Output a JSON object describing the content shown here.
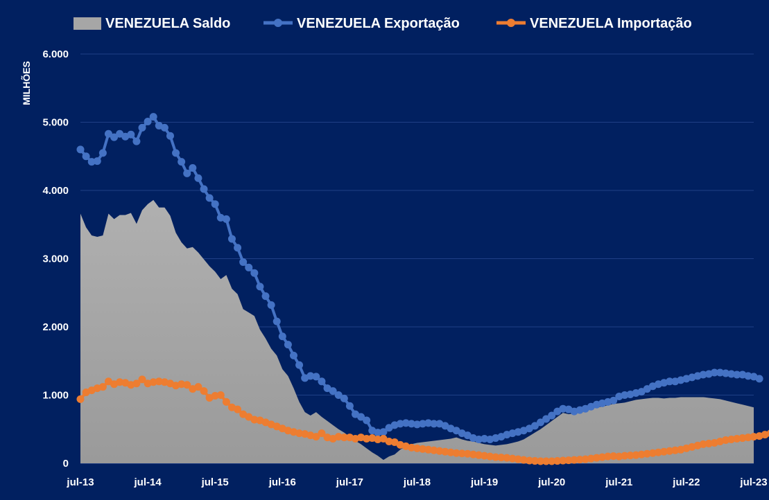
{
  "chart_data": {
    "type": "line",
    "ylabel": "MILHÕES",
    "ylim": [
      0,
      6000
    ],
    "yticks": [
      0,
      1000,
      2000,
      3000,
      4000,
      5000,
      6000
    ],
    "ytick_labels": [
      "0",
      "1.000",
      "2.000",
      "3.000",
      "4.000",
      "5.000",
      "6.000"
    ],
    "xtick_labels": [
      "jul-13",
      "jul-14",
      "jul-15",
      "jul-16",
      "jul-17",
      "jul-18",
      "jul-19",
      "jul-20",
      "jul-21",
      "jul-22",
      "jul-23"
    ],
    "x_start": "jul-13",
    "x_end": "jul-23",
    "grid": true,
    "legend_position": "top",
    "colors": {
      "saldo": "#a6a6a6",
      "exportacao": "#4472c4",
      "importacao": "#ed7d31",
      "background": "#012060",
      "grid": "#1f3f86"
    },
    "series": [
      {
        "name": "VENEZUELA Saldo",
        "style": "area",
        "values": [
          3660,
          3460,
          3340,
          3320,
          3340,
          3660,
          3580,
          3640,
          3640,
          3670,
          3510,
          3710,
          3800,
          3860,
          3750,
          3750,
          3630,
          3380,
          3240,
          3150,
          3170,
          3090,
          2990,
          2890,
          2810,
          2700,
          2760,
          2560,
          2480,
          2260,
          2210,
          2160,
          1960,
          1830,
          1680,
          1580,
          1380,
          1280,
          1100,
          900,
          750,
          700,
          750,
          680,
          620,
          560,
          500,
          450,
          390,
          330,
          280,
          220,
          160,
          110,
          50,
          100,
          130,
          200,
          250,
          280,
          300,
          310,
          320,
          330,
          340,
          350,
          360,
          380,
          350,
          330,
          320,
          300,
          280,
          270,
          260,
          270,
          280,
          300,
          320,
          350,
          400,
          450,
          500,
          560,
          620,
          680,
          740,
          720,
          730,
          750,
          780,
          800,
          820,
          830,
          850,
          870,
          880,
          890,
          910,
          930,
          940,
          950,
          960,
          960,
          950,
          960,
          960,
          970,
          970,
          970,
          970,
          970,
          960,
          950,
          940,
          920,
          900,
          880,
          860,
          840,
          820
        ]
      },
      {
        "name": "VENEZUELA Exportação",
        "style": "line",
        "values": [
          4600,
          4500,
          4420,
          4430,
          4550,
          4830,
          4780,
          4830,
          4790,
          4820,
          4720,
          4920,
          5010,
          5080,
          4950,
          4920,
          4800,
          4550,
          4420,
          4250,
          4330,
          4180,
          4020,
          3890,
          3800,
          3600,
          3580,
          3290,
          3160,
          2950,
          2870,
          2790,
          2590,
          2450,
          2320,
          2080,
          1860,
          1740,
          1580,
          1440,
          1250,
          1280,
          1270,
          1200,
          1100,
          1060,
          1000,
          950,
          840,
          720,
          680,
          630,
          480,
          450,
          460,
          520,
          560,
          580,
          590,
          580,
          570,
          580,
          590,
          580,
          580,
          550,
          510,
          480,
          440,
          410,
          370,
          350,
          360,
          350,
          370,
          390,
          420,
          440,
          460,
          480,
          510,
          550,
          600,
          650,
          700,
          760,
          800,
          790,
          760,
          780,
          800,
          830,
          860,
          880,
          900,
          920,
          980,
          1000,
          1010,
          1030,
          1050,
          1090,
          1130,
          1160,
          1180,
          1200,
          1200,
          1220,
          1240,
          1260,
          1280,
          1300,
          1310,
          1330,
          1330,
          1320,
          1310,
          1300,
          1300,
          1280,
          1270,
          1240
        ]
      },
      {
        "name": "VENEZUELA Importação",
        "style": "line",
        "values": [
          940,
          1040,
          1070,
          1100,
          1120,
          1200,
          1160,
          1190,
          1180,
          1150,
          1170,
          1230,
          1170,
          1190,
          1200,
          1190,
          1170,
          1140,
          1160,
          1150,
          1090,
          1120,
          1060,
          960,
          990,
          1000,
          900,
          820,
          790,
          720,
          680,
          640,
          630,
          600,
          570,
          540,
          510,
          480,
          460,
          440,
          430,
          410,
          390,
          440,
          380,
          360,
          390,
          380,
          380,
          360,
          380,
          360,
          370,
          350,
          360,
          320,
          310,
          270,
          250,
          230,
          220,
          210,
          200,
          190,
          180,
          170,
          160,
          150,
          145,
          140,
          130,
          120,
          110,
          100,
          90,
          85,
          80,
          70,
          60,
          50,
          40,
          35,
          30,
          30,
          30,
          35,
          40,
          45,
          50,
          55,
          60,
          70,
          80,
          90,
          100,
          105,
          100,
          110,
          115,
          120,
          130,
          140,
          150,
          160,
          170,
          180,
          190,
          200,
          220,
          240,
          260,
          280,
          290,
          300,
          320,
          340,
          350,
          360,
          370,
          380,
          390,
          400,
          420,
          440
        ]
      }
    ]
  }
}
